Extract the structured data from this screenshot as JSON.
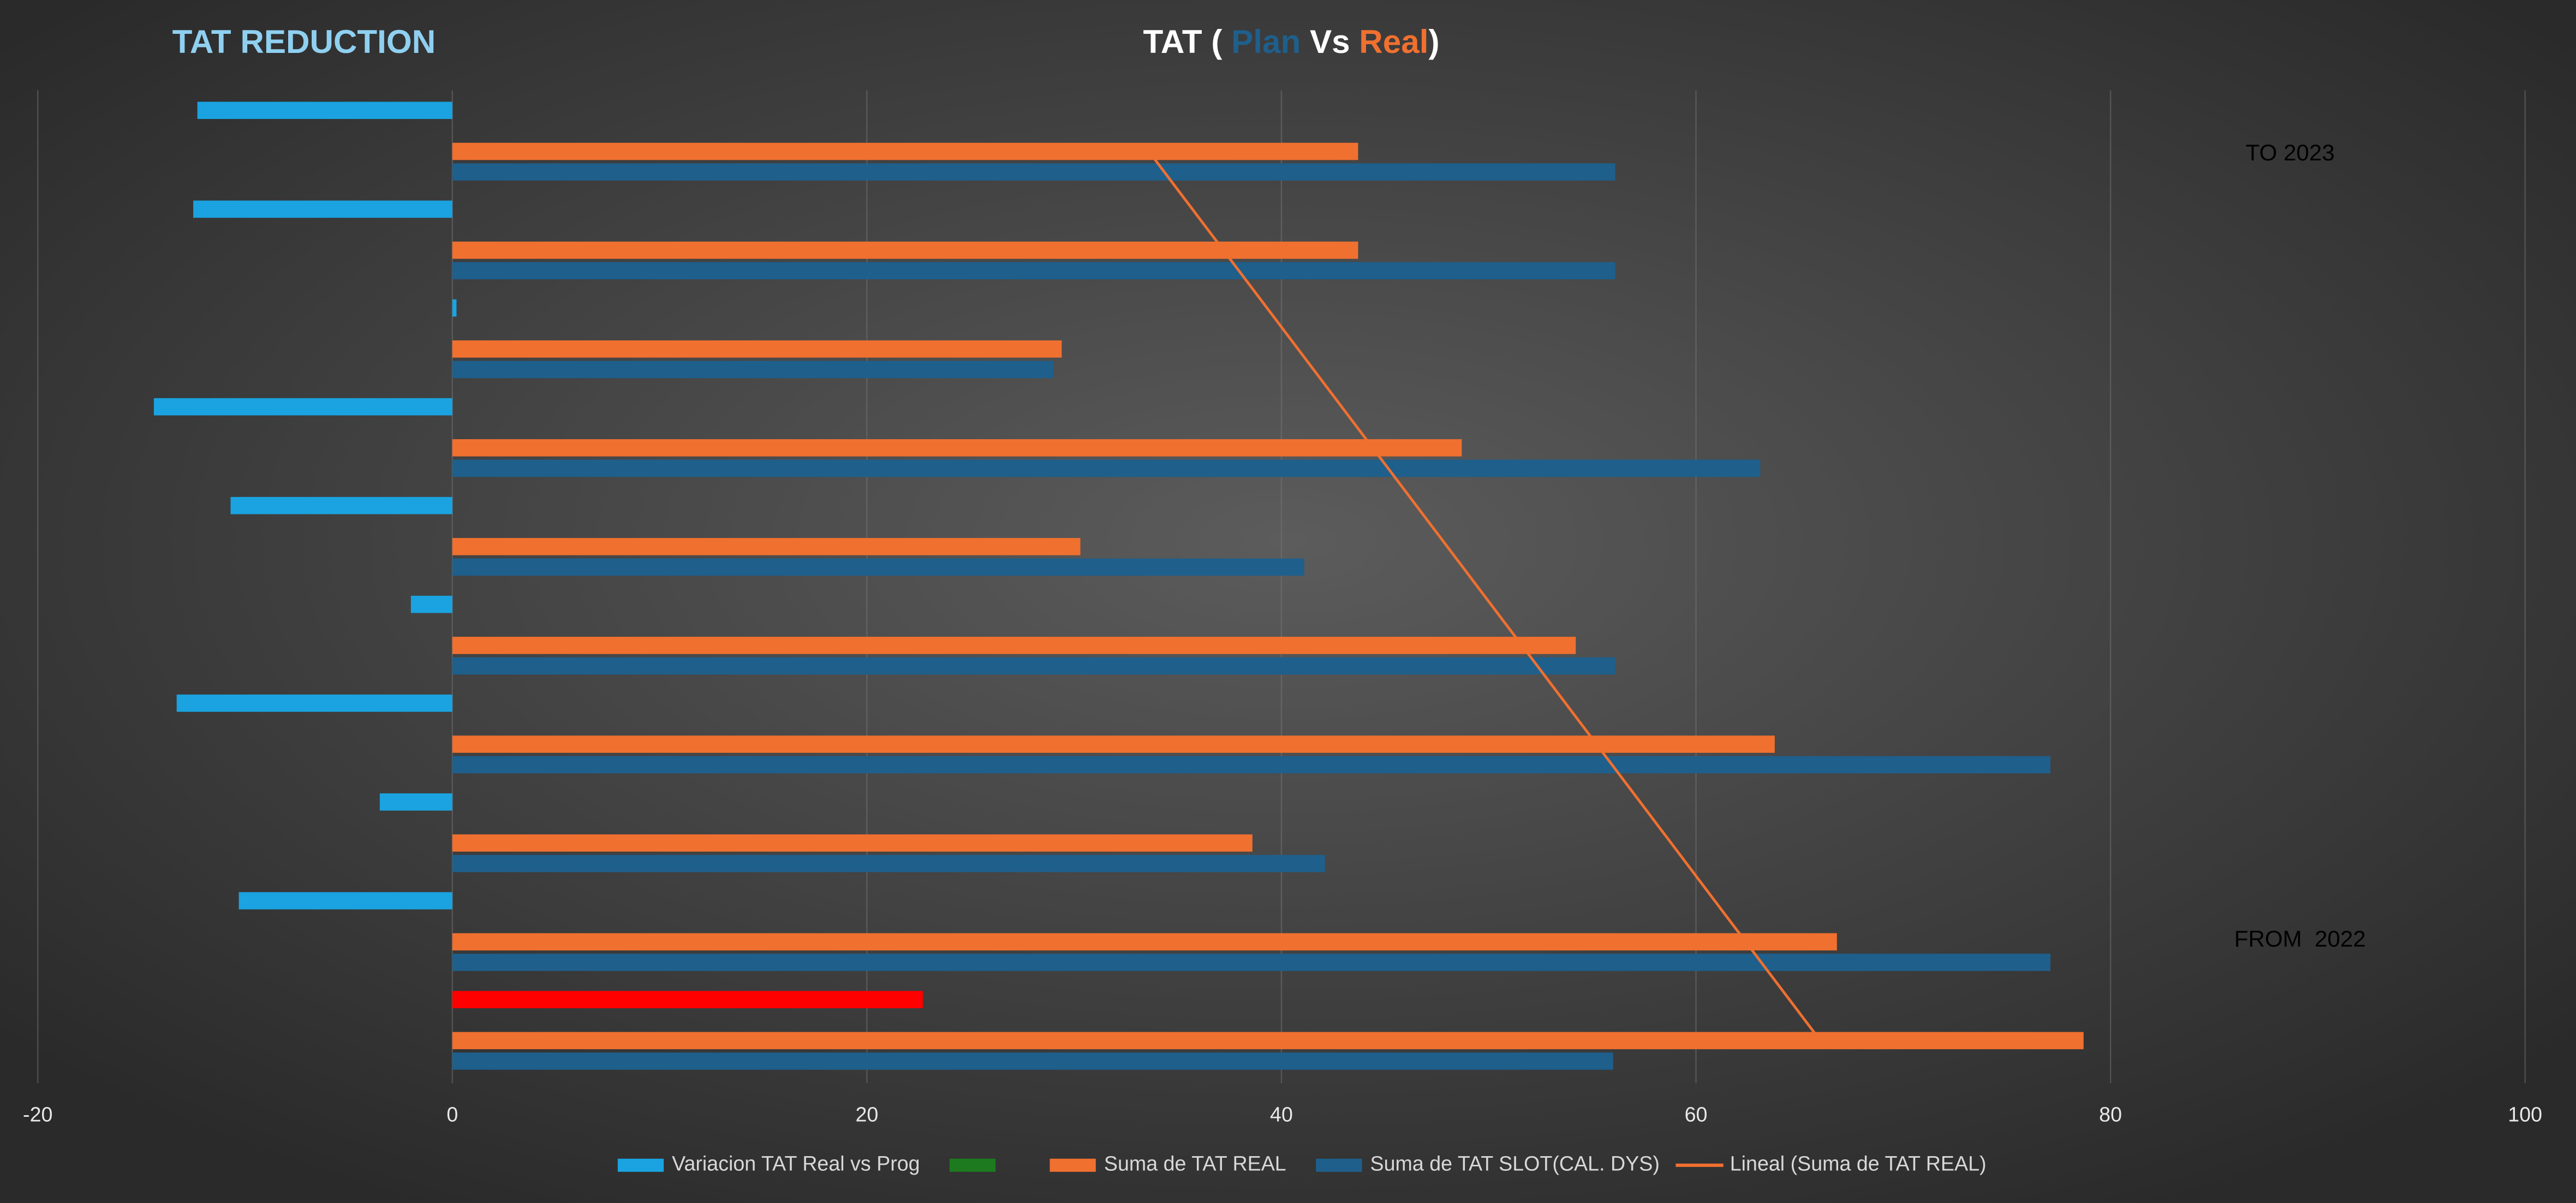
{
  "chart_data": {
    "type": "barh",
    "heading": "TAT REDUCTION",
    "title_parts": [
      {
        "text": "TAT ( ",
        "color": "#ffffff"
      },
      {
        "text": "Plan",
        "color": "#1f5f8b"
      },
      {
        "text": " Vs ",
        "color": "#ffffff"
      },
      {
        "text": "Real",
        "color": "#f07030"
      },
      {
        "text": ")",
        "color": "#ffffff"
      }
    ],
    "annotations": [
      "TO 2023",
      "FROM  2022"
    ],
    "categories": [
      null,
      null,
      null,
      null,
      null,
      null,
      null,
      null,
      null,
      null
    ],
    "series": [
      {
        "name": "Variacion TAT Real vs Prog",
        "color": "#1aa3e0",
        "values": [
          22.7,
          -10.3,
          -3.5,
          -13.3,
          -2.0,
          -10.7,
          -14.4,
          0.2,
          -12.5,
          -12.3
        ],
        "point_colors": [
          "#ff0000",
          null,
          null,
          null,
          null,
          null,
          null,
          null,
          null,
          null
        ]
      },
      {
        "color": "#1e7a1e",
        "values": [
          null,
          null,
          null,
          null,
          null,
          null,
          null,
          null,
          null,
          null
        ]
      },
      {
        "name": "Suma de TAT REAL",
        "color": "#f07030",
        "values": [
          78.7,
          66.8,
          38.6,
          63.8,
          54.2,
          30.3,
          48.7,
          29.4,
          43.7,
          43.7
        ]
      },
      {
        "name": "Suma de TAT SLOT(CAL. DYS)",
        "color": "#1f5f8b",
        "values": [
          56.0,
          77.1,
          42.1,
          77.1,
          56.1,
          41.1,
          63.1,
          29.0,
          56.1,
          56.1
        ]
      }
    ],
    "trendline": {
      "name": "Lineal (Suma de TAT REAL)",
      "color": "#f07030",
      "values": [
        66.0,
        33.6
      ]
    },
    "xlim": [
      -20,
      100
    ],
    "xticks": [
      -20,
      0,
      20,
      40,
      60,
      80,
      100
    ],
    "grid": true
  }
}
